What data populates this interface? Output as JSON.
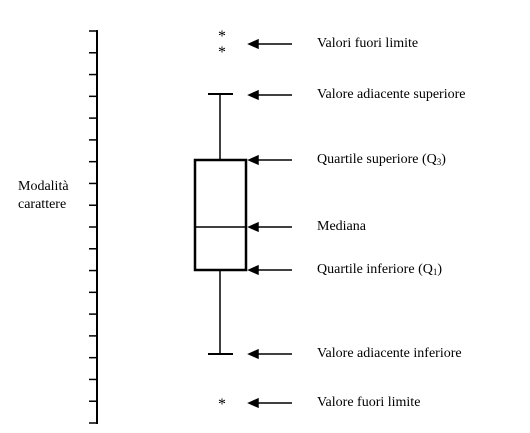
{
  "axis_title": {
    "line1": "Modalità",
    "line2": "carattere"
  },
  "outlier_symbol": "*",
  "labels": {
    "outliers_top": "Valori fuori limite",
    "upper_adjacent": "Valore adiacente superiore",
    "upper_quartile_prefix": "Quartile superiore (Q",
    "upper_quartile_sub": "3",
    "upper_quartile_suffix": ")",
    "median": "Mediana",
    "lower_quartile_prefix": "Quartile inferiore (Q",
    "lower_quartile_sub": "1",
    "lower_quartile_suffix": ")",
    "lower_adjacent": "Valore adiacente inferiore",
    "outlier_bottom": "Valore fuori limite"
  }
}
